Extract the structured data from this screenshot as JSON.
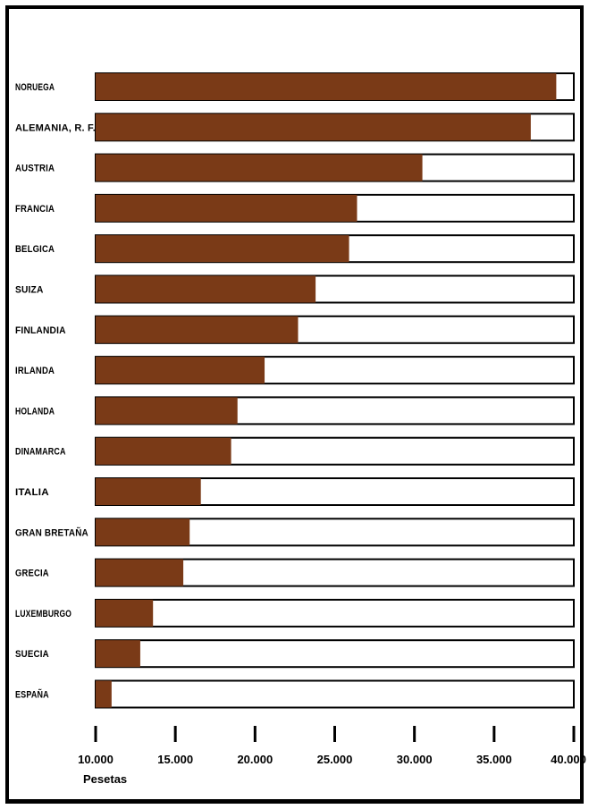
{
  "chart_data": {
    "type": "bar",
    "orientation": "horizontal",
    "stacked": true,
    "categories": [
      "NORUEGA",
      "ALEMANIA, R. F.",
      "AUSTRIA",
      "FRANCIA",
      "BELGICA",
      "SUIZA",
      "FINLANDIA",
      "IRLANDA",
      "HOLANDA",
      "DINAMARCA",
      "ITALIA",
      "GRAN  BRETAÑA",
      "GRECIA",
      "LUXEMBURGO",
      "SUECIA",
      "ESPAÑA"
    ],
    "values": [
      38900,
      37300,
      30500,
      26400,
      25900,
      23800,
      22700,
      20600,
      18900,
      18500,
      16600,
      15900,
      15500,
      13600,
      12800,
      11000
    ],
    "xlim": [
      10000,
      40000
    ],
    "xticks": [
      10000,
      15000,
      20000,
      25000,
      30000,
      35000,
      40000
    ],
    "xtick_labels": [
      "10.000",
      "15.000",
      "20.000",
      "25.000",
      "30.000",
      "35.000",
      "40.000"
    ],
    "xlabel": "Pesetas",
    "colors": {
      "filled": "#7a3a17",
      "remainder": "#ffffff",
      "outline": "#000000"
    }
  }
}
